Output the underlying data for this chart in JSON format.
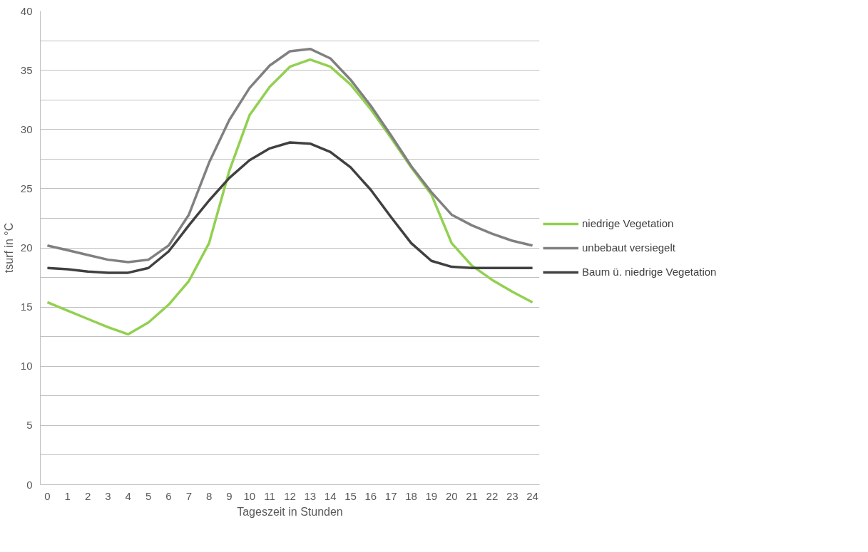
{
  "chart_data": {
    "type": "line",
    "xlabel": "Tageszeit in Stunden",
    "ylabel": "tsurf in °C",
    "x": [
      0,
      1,
      2,
      3,
      4,
      5,
      6,
      7,
      8,
      9,
      10,
      11,
      12,
      13,
      14,
      15,
      16,
      17,
      18,
      19,
      20,
      21,
      22,
      23,
      24
    ],
    "xlim": [
      -0.35,
      24.35
    ],
    "xticks": [
      0,
      1,
      2,
      3,
      4,
      5,
      6,
      7,
      8,
      9,
      10,
      11,
      12,
      13,
      14,
      15,
      16,
      17,
      18,
      19,
      20,
      21,
      22,
      23,
      24
    ],
    "ylim": [
      0,
      40
    ],
    "yticks": [
      0,
      {
        "value": 2.5,
        "label": null
      },
      5,
      {
        "value": 7.5,
        "label": null
      },
      10,
      {
        "value": 12.5,
        "label": null
      },
      15,
      {
        "value": 17.5,
        "label": null
      },
      20,
      {
        "value": 22.5,
        "label": null
      },
      25,
      {
        "value": 27.5,
        "label": null
      },
      30,
      {
        "value": 32.5,
        "label": null
      },
      35,
      {
        "value": 37.5,
        "label": null
      },
      40
    ],
    "grid": "y",
    "legend": "right",
    "line_style": "solid",
    "marker": "none",
    "series": [
      {
        "name": "niedrige Vegetation",
        "color": "#92d050",
        "values": [
          15.4,
          14.7,
          14.0,
          13.3,
          12.7,
          13.7,
          15.2,
          17.2,
          20.4,
          26.5,
          31.2,
          33.6,
          35.3,
          35.9,
          35.3,
          33.8,
          31.7,
          29.3,
          26.8,
          24.5,
          20.4,
          18.5,
          17.3,
          16.3,
          15.4
        ]
      },
      {
        "name": "unbebaut versiegelt",
        "color": "#808080",
        "values": [
          20.2,
          19.8,
          19.4,
          19.0,
          18.8,
          19.0,
          20.2,
          22.8,
          27.2,
          30.8,
          33.5,
          35.4,
          36.6,
          36.8,
          36.0,
          34.2,
          32.0,
          29.5,
          26.9,
          24.7,
          22.8,
          21.9,
          21.2,
          20.6,
          20.2
        ]
      },
      {
        "name": "Baum ü. niedrige Vegetation",
        "color": "#404040",
        "values": [
          18.3,
          18.2,
          18.0,
          17.9,
          17.9,
          18.3,
          19.7,
          21.9,
          24.0,
          25.9,
          27.4,
          28.4,
          28.9,
          28.8,
          28.1,
          26.8,
          24.9,
          22.6,
          20.4,
          18.9,
          18.4,
          18.3,
          18.3,
          18.3,
          18.3
        ]
      }
    ]
  }
}
